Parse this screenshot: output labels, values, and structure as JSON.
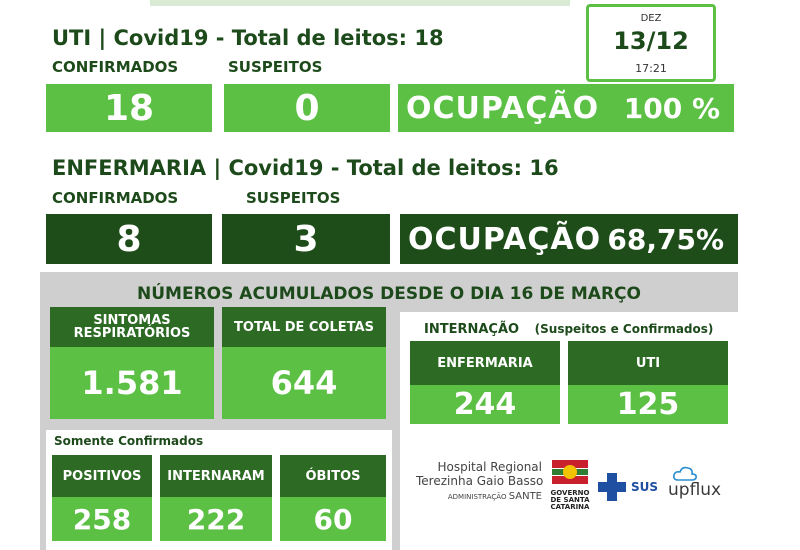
{
  "date": {
    "month": "DEZ",
    "day": "13/12",
    "time": "17:21"
  },
  "uti": {
    "title": "UTI | Covid19 - Total de leitos: 18",
    "confirmed_label": "CONFIRMADOS",
    "suspected_label": "SUSPEITOS",
    "confirmed": "18",
    "suspected": "0",
    "occupancy_label": "OCUPAÇÃO",
    "occupancy": "100 %"
  },
  "enfermaria": {
    "title": "ENFERMARIA | Covid19 - Total de leitos: 16",
    "confirmed_label": "CONFIRMADOS",
    "suspected_label": "SUSPEITOS",
    "confirmed": "8",
    "suspected": "3",
    "occupancy_label": "OCUPAÇÃO",
    "occupancy": "68,75%"
  },
  "accumulated": {
    "title": "NÚMEROS ACUMULADOS DESDE O DIA 16 DE MARÇO",
    "sintomas_label_1": "SINTOMAS",
    "sintomas_label_2": "RESPIRATÓRIOS",
    "sintomas": "1.581",
    "coletas_label": "TOTAL DE COLETAS",
    "coletas": "644",
    "internacao_title": "INTERNAÇÃO",
    "internacao_sub": "(Suspeitos e Confirmados)",
    "int_enfermaria_label": "ENFERMARIA",
    "int_enfermaria": "244",
    "int_uti_label": "UTI",
    "int_uti": "125",
    "confirmed_title": "Somente Confirmados",
    "positivos_label": "POSITIVOS",
    "positivos": "258",
    "internaram_label": "INTERNARAM",
    "internaram": "222",
    "obitos_label": "ÓBITOS",
    "obitos": "60"
  },
  "logos": {
    "hospital_line1": "Hospital Regional",
    "hospital_line2": "Terezinha Gaio Basso",
    "admin": "ADMINISTRAÇÃO",
    "sante": "SANTE",
    "gov1": "GOVERNO",
    "gov2": "DE SANTA",
    "gov3": "CATARINA",
    "sus": "SUS",
    "upflux": "upflux"
  },
  "colors": {
    "light_green": "#5cc045",
    "dark_green": "#1e4d1a",
    "text_green": "#1d4a1a"
  }
}
